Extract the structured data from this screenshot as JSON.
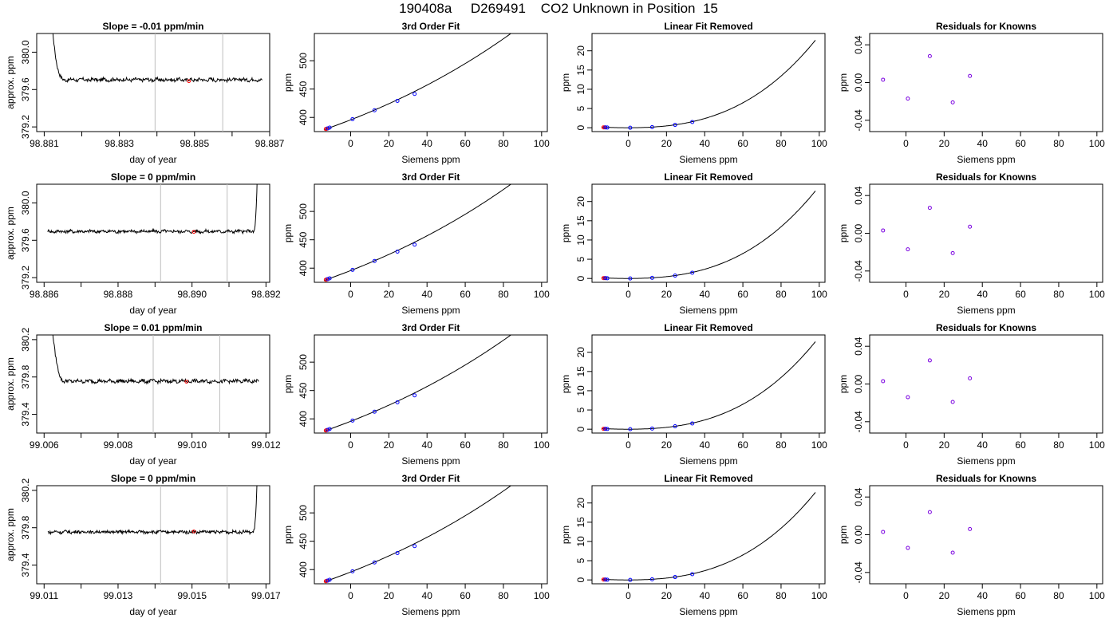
{
  "figure_title": "190408a     D269491    CO2 Unknown in Position  15",
  "colors": {
    "trace": "#000000",
    "grid_line": "#bebebe",
    "marker_red": "#ff0000",
    "marker_blue": "#0000ff",
    "point_purple": "#7a00e0"
  },
  "chart_data": [
    {
      "type": "line",
      "panel": "time-series",
      "row": 1,
      "title": "Slope =  -0.01  ppm/min",
      "xlabel": "day of year",
      "ylabel": "approx. ppm",
      "xlim": [
        98.8808,
        98.887
      ],
      "ylim": [
        379.15,
        380.2
      ],
      "xticks": [
        98.881,
        98.882,
        98.883,
        98.884,
        98.885,
        98.886,
        98.887
      ],
      "xtick_labels": [
        "98.881",
        "",
        "98.883",
        "",
        "98.885",
        "",
        "98.887"
      ],
      "yticks": [
        379.2,
        379.6,
        380.0
      ],
      "ytick_labels": [
        "379.2",
        "379.6",
        "380.0"
      ],
      "x_start": 98.8811,
      "x_end": 98.8868,
      "spike_side": "start",
      "spike_width": 0.00044,
      "baseline": 379.705,
      "noise": 0.018,
      "vlines": [
        98.88395,
        98.88575
      ],
      "marker": {
        "x": 98.88485,
        "y": 379.69
      }
    },
    {
      "type": "line",
      "panel": "time-series",
      "row": 2,
      "title": "Slope =  0  ppm/min",
      "xlabel": "day of year",
      "ylabel": "approx. ppm",
      "xlim": [
        98.8858,
        98.8921
      ],
      "ylim": [
        379.15,
        380.2
      ],
      "xticks": [
        98.886,
        98.887,
        98.888,
        98.889,
        98.89,
        98.891,
        98.892
      ],
      "xtick_labels": [
        "98.886",
        "",
        "98.888",
        "",
        "98.890",
        "",
        "98.892"
      ],
      "yticks": [
        379.2,
        379.6,
        380.0
      ],
      "ytick_labels": [
        "379.2",
        "379.6",
        "380.0"
      ],
      "x_start": 98.8861,
      "x_end": 98.8918,
      "spike_side": "end",
      "spike_width": 0.00014,
      "baseline": 379.695,
      "noise": 0.016,
      "vlines": [
        98.88915,
        98.89095
      ],
      "marker": {
        "x": 98.89005,
        "y": 379.69
      }
    },
    {
      "type": "line",
      "panel": "time-series",
      "row": 3,
      "title": "Slope =  0.01  ppm/min",
      "xlabel": "day of year",
      "ylabel": "approx. ppm",
      "xlim": [
        99.0058,
        99.0121
      ],
      "ylim": [
        379.2,
        380.25
      ],
      "xticks": [
        99.006,
        99.007,
        99.008,
        99.009,
        99.01,
        99.011,
        99.012
      ],
      "xtick_labels": [
        "99.006",
        "",
        "99.008",
        "",
        "99.010",
        "",
        "99.012"
      ],
      "yticks": [
        379.4,
        379.8,
        380.2
      ],
      "ytick_labels": [
        "379.4",
        "379.8",
        "380.2"
      ],
      "x_start": 99.0061,
      "x_end": 99.0118,
      "spike_side": "start",
      "spike_width": 0.00047,
      "baseline": 379.755,
      "noise": 0.018,
      "vlines": [
        99.00895,
        99.01075
      ],
      "marker": {
        "x": 99.00985,
        "y": 379.75
      }
    },
    {
      "type": "line",
      "panel": "time-series",
      "row": 4,
      "title": "Slope =  0  ppm/min",
      "xlabel": "day of year",
      "ylabel": "approx. ppm",
      "xlim": [
        99.0108,
        99.0171
      ],
      "ylim": [
        379.2,
        380.25
      ],
      "xticks": [
        99.011,
        99.012,
        99.013,
        99.014,
        99.015,
        99.016,
        99.017
      ],
      "xtick_labels": [
        "99.011",
        "",
        "99.013",
        "",
        "99.015",
        "",
        "99.017"
      ],
      "yticks": [
        379.4,
        379.8,
        380.2
      ],
      "ytick_labels": [
        "379.4",
        "379.8",
        "380.2"
      ],
      "x_start": 99.0111,
      "x_end": 99.0168,
      "spike_side": "end",
      "spike_width": 0.00015,
      "baseline": 379.755,
      "noise": 0.016,
      "vlines": [
        99.01415,
        99.01595
      ],
      "marker": {
        "x": 99.01505,
        "y": 379.76
      }
    },
    {
      "type": "line",
      "panel": "fit",
      "title": "3rd Order Fit",
      "xlabel": "Siemens ppm",
      "ylabel": "ppm",
      "xlim": [
        -19,
        103
      ],
      "ylim": [
        375,
        548
      ],
      "xticks": [
        0,
        20,
        40,
        60,
        80,
        100
      ],
      "yticks": [
        400,
        450,
        500
      ],
      "curve": {
        "a": 395.7,
        "b": 1.32,
        "c": 0.0048,
        "d": 1.3e-05,
        "x_start": -14,
        "x_end": 98
      },
      "points_blue": [
        [
          -12,
          380.6
        ],
        [
          -11,
          382.0
        ],
        [
          1,
          397.0
        ],
        [
          12.5,
          412.6
        ],
        [
          24.5,
          429.2
        ],
        [
          33.5,
          441.5
        ]
      ],
      "points_red": [
        [
          -13,
          379.5
        ],
        [
          -12.3,
          380.3
        ]
      ]
    },
    {
      "type": "line",
      "panel": "linear-removed",
      "title": "Linear Fit Removed",
      "xlabel": "Siemens ppm",
      "ylabel": "ppm",
      "xlim": [
        -19,
        103
      ],
      "ylim": [
        -1.0,
        24.5
      ],
      "xticks": [
        0,
        20,
        40,
        60,
        80,
        100
      ],
      "yticks": [
        0,
        5,
        10,
        15,
        20
      ],
      "curve": {
        "a": 0.0,
        "b": 0.0,
        "c": 0.0009,
        "d": 1.5e-05,
        "x_start": -14,
        "x_end": 98
      },
      "points_blue": [
        [
          -12,
          0.08
        ],
        [
          -11,
          0.05
        ],
        [
          1,
          0.0
        ],
        [
          12.5,
          0.17
        ],
        [
          24.5,
          0.75
        ],
        [
          33.5,
          1.5
        ]
      ],
      "points_red": [
        [
          -13,
          0.1
        ],
        [
          -12.3,
          0.09
        ]
      ]
    },
    {
      "type": "scatter",
      "panel": "residuals",
      "title": "Residuals for Knowns",
      "xlabel": "Siemens ppm",
      "ylabel": "ppm",
      "xlim": [
        -19,
        103
      ],
      "ylim": [
        -0.052,
        0.052
      ],
      "xticks": [
        0,
        20,
        40,
        60,
        80,
        100
      ],
      "yticks": [
        -0.04,
        0.0,
        0.04
      ],
      "ytick_labels": [
        "-0.04",
        "0.00",
        "0.04"
      ],
      "rows": [
        {
          "row": 1,
          "points": [
            [
              -12,
              0.003
            ],
            [
              1,
              -0.017
            ],
            [
              12.5,
              0.028
            ],
            [
              24.5,
              -0.021
            ],
            [
              33.5,
              0.007
            ]
          ]
        },
        {
          "row": 2,
          "points": [
            [
              -12,
              0.003
            ],
            [
              1,
              -0.017
            ],
            [
              12.5,
              0.027
            ],
            [
              24.5,
              -0.021
            ],
            [
              33.5,
              0.007
            ]
          ]
        },
        {
          "row": 3,
          "points": [
            [
              -12,
              0.003
            ],
            [
              1,
              -0.014
            ],
            [
              12.5,
              0.025
            ],
            [
              24.5,
              -0.019
            ],
            [
              33.5,
              0.006
            ]
          ]
        },
        {
          "row": 4,
          "points": [
            [
              -12,
              0.003
            ],
            [
              1,
              -0.014
            ],
            [
              12.5,
              0.024
            ],
            [
              24.5,
              -0.019
            ],
            [
              33.5,
              0.006
            ]
          ]
        }
      ]
    }
  ]
}
